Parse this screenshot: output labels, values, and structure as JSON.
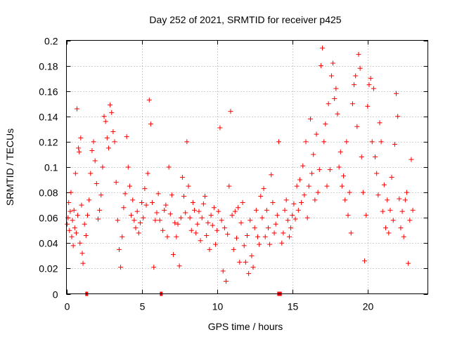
{
  "chart_data": {
    "type": "scatter",
    "title": "Day 252 of 2021, SRMTID for receiver p425",
    "xlabel": "GPS time / hours",
    "ylabel": "SRMTID / TECUs",
    "xlim": [
      0,
      24
    ],
    "ylim": [
      0,
      0.2
    ],
    "xticks": [
      0,
      5,
      10,
      15,
      20
    ],
    "yticks": [
      0,
      0.02,
      0.04,
      0.06,
      0.08,
      0.1,
      0.12,
      0.14,
      0.16,
      0.18,
      0.2
    ],
    "ytick_labels": [
      "0",
      "0.02",
      "0.04",
      "0.06",
      "0.08",
      "0.1",
      "0.12",
      "0.14",
      "0.16",
      "0.18",
      "0.2"
    ],
    "grid": true,
    "marker": "+",
    "color": "#ff0000",
    "data_gaps_at_zero": [
      {
        "x_start": 1.25,
        "x_end": 1.4
      },
      {
        "x_start": 6.2,
        "x_end": 6.35
      },
      {
        "x_start": 14.0,
        "x_end": 14.3
      }
    ],
    "series": [
      {
        "name": "SRMTID",
        "points": [
          [
            0.05,
            0.055
          ],
          [
            0.1,
            0.06
          ],
          [
            0.15,
            0.072
          ],
          [
            0.2,
            0.05
          ],
          [
            0.25,
            0.065
          ],
          [
            0.3,
            0.08
          ],
          [
            0.35,
            0.045
          ],
          [
            0.4,
            0.058
          ],
          [
            0.45,
            0.038
          ],
          [
            0.5,
            0.066
          ],
          [
            0.55,
            0.052
          ],
          [
            0.6,
            0.095
          ],
          [
            0.65,
            0.048
          ],
          [
            0.7,
            0.146
          ],
          [
            0.75,
            0.062
          ],
          [
            0.8,
            0.115
          ],
          [
            0.85,
            0.112
          ],
          [
            0.9,
            0.04
          ],
          [
            0.95,
            0.123
          ],
          [
            1.0,
            0.07
          ],
          [
            1.05,
            0.032
          ],
          [
            1.1,
            0.024
          ],
          [
            1.2,
            0.055
          ],
          [
            1.3,
            0.046
          ],
          [
            1.4,
            0.062
          ],
          [
            1.5,
            0.074
          ],
          [
            1.6,
            0.095
          ],
          [
            1.7,
            0.113
          ],
          [
            1.8,
            0.12
          ],
          [
            1.9,
            0.105
          ],
          [
            2.0,
            0.087
          ],
          [
            2.1,
            0.059
          ],
          [
            2.2,
            0.066
          ],
          [
            2.3,
            0.078
          ],
          [
            2.4,
            0.1
          ],
          [
            2.5,
            0.14
          ],
          [
            2.6,
            0.136
          ],
          [
            2.7,
            0.123
          ],
          [
            2.8,
            0.115
          ],
          [
            2.9,
            0.149
          ],
          [
            3.0,
            0.143
          ],
          [
            3.1,
            0.128
          ],
          [
            3.2,
            0.12
          ],
          [
            3.3,
            0.088
          ],
          [
            3.4,
            0.058
          ],
          [
            3.5,
            0.035
          ],
          [
            3.6,
            0.021
          ],
          [
            3.7,
            0.045
          ],
          [
            3.8,
            0.068
          ],
          [
            3.9,
            0.079
          ],
          [
            4.0,
            0.124
          ],
          [
            4.1,
            0.1
          ],
          [
            4.2,
            0.085
          ],
          [
            4.3,
            0.062
          ],
          [
            4.4,
            0.074
          ],
          [
            4.5,
            0.058
          ],
          [
            4.6,
            0.052
          ],
          [
            4.7,
            0.065
          ],
          [
            4.8,
            0.048
          ],
          [
            4.9,
            0.056
          ],
          [
            5.0,
            0.072
          ],
          [
            5.1,
            0.06
          ],
          [
            5.2,
            0.083
          ],
          [
            5.3,
            0.07
          ],
          [
            5.4,
            0.095
          ],
          [
            5.5,
            0.153
          ],
          [
            5.6,
            0.134
          ],
          [
            5.7,
            0.072
          ],
          [
            5.8,
            0.021
          ],
          [
            5.9,
            0.058
          ],
          [
            6.0,
            0.064
          ],
          [
            6.1,
            0.079
          ],
          [
            6.2,
            0.058
          ],
          [
            6.4,
            0.05
          ],
          [
            6.5,
            0.066
          ],
          [
            6.6,
            0.07
          ],
          [
            6.7,
            0.045
          ],
          [
            6.8,
            0.1
          ],
          [
            6.9,
            0.063
          ],
          [
            7.0,
            0.078
          ],
          [
            7.1,
            0.031
          ],
          [
            7.2,
            0.056
          ],
          [
            7.3,
            0.045
          ],
          [
            7.4,
            0.055
          ],
          [
            7.5,
            0.022
          ],
          [
            7.6,
            0.06
          ],
          [
            7.7,
            0.092
          ],
          [
            7.8,
            0.077
          ],
          [
            7.9,
            0.064
          ],
          [
            8.0,
            0.12
          ],
          [
            8.1,
            0.085
          ],
          [
            8.2,
            0.06
          ],
          [
            8.3,
            0.05
          ],
          [
            8.4,
            0.072
          ],
          [
            8.5,
            0.066
          ],
          [
            8.6,
            0.048
          ],
          [
            8.7,
            0.055
          ],
          [
            8.8,
            0.065
          ],
          [
            8.9,
            0.042
          ],
          [
            9.0,
            0.06
          ],
          [
            9.1,
            0.071
          ],
          [
            9.2,
            0.077
          ],
          [
            9.3,
            0.046
          ],
          [
            9.4,
            0.056
          ],
          [
            9.5,
            0.035
          ],
          [
            9.6,
            0.062
          ],
          [
            9.7,
            0.054
          ],
          [
            9.8,
            0.068
          ],
          [
            9.9,
            0.039
          ],
          [
            10.0,
            0.05
          ],
          [
            10.1,
            0.065
          ],
          [
            10.2,
            0.131
          ],
          [
            10.3,
            0.058
          ],
          [
            10.4,
            0.018
          ],
          [
            10.5,
            0.052
          ],
          [
            10.6,
            0.01
          ],
          [
            10.7,
            0.047
          ],
          [
            10.8,
            0.085
          ],
          [
            10.9,
            0.144
          ],
          [
            11.0,
            0.062
          ],
          [
            11.1,
            0.035
          ],
          [
            11.2,
            0.065
          ],
          [
            11.3,
            0.044
          ],
          [
            11.4,
            0.068
          ],
          [
            11.5,
            0.025
          ],
          [
            11.6,
            0.056
          ],
          [
            11.7,
            0.072
          ],
          [
            11.8,
            0.038
          ],
          [
            11.9,
            0.025
          ],
          [
            12.0,
            0.046
          ],
          [
            12.1,
            0.016
          ],
          [
            12.2,
            0.058
          ],
          [
            12.3,
            0.03
          ],
          [
            12.4,
            0.021
          ],
          [
            12.5,
            0.052
          ],
          [
            12.6,
            0.066
          ],
          [
            12.7,
            0.045
          ],
          [
            12.8,
            0.039
          ],
          [
            12.9,
            0.077
          ],
          [
            13.0,
            0.06
          ],
          [
            13.1,
            0.083
          ],
          [
            13.2,
            0.045
          ],
          [
            13.3,
            0.066
          ],
          [
            13.4,
            0.052
          ],
          [
            13.5,
            0.039
          ],
          [
            13.6,
            0.094
          ],
          [
            13.7,
            0.072
          ],
          [
            13.8,
            0.048
          ],
          [
            13.9,
            0.055
          ],
          [
            14.0,
            0.062
          ],
          [
            14.1,
            0.12
          ],
          [
            14.3,
            0.04
          ],
          [
            14.4,
            0.048
          ],
          [
            14.5,
            0.066
          ],
          [
            14.6,
            0.074
          ],
          [
            14.7,
            0.058
          ],
          [
            14.8,
            0.045
          ],
          [
            14.9,
            0.052
          ],
          [
            15.0,
            0.062
          ],
          [
            15.1,
            0.071
          ],
          [
            15.2,
            0.059
          ],
          [
            15.3,
            0.085
          ],
          [
            15.4,
            0.066
          ],
          [
            15.5,
            0.09
          ],
          [
            15.6,
            0.072
          ],
          [
            15.7,
            0.101
          ],
          [
            15.8,
            0.078
          ],
          [
            15.9,
            0.12
          ],
          [
            16.0,
            0.06
          ],
          [
            16.1,
            0.085
          ],
          [
            16.2,
            0.138
          ],
          [
            16.3,
            0.095
          ],
          [
            16.4,
            0.11
          ],
          [
            16.5,
            0.074
          ],
          [
            16.6,
            0.126
          ],
          [
            16.7,
            0.08
          ],
          [
            16.8,
            0.098
          ],
          [
            16.9,
            0.18
          ],
          [
            17.0,
            0.194
          ],
          [
            17.1,
            0.12
          ],
          [
            17.2,
            0.134
          ],
          [
            17.3,
            0.085
          ],
          [
            17.4,
            0.15
          ],
          [
            17.5,
            0.098
          ],
          [
            17.6,
            0.172
          ],
          [
            17.7,
            0.182
          ],
          [
            17.8,
            0.154
          ],
          [
            17.9,
            0.162
          ],
          [
            18.0,
            0.142
          ],
          [
            18.1,
            0.1
          ],
          [
            18.2,
            0.112
          ],
          [
            18.3,
            0.085
          ],
          [
            18.4,
            0.093
          ],
          [
            18.5,
            0.074
          ],
          [
            18.6,
            0.12
          ],
          [
            18.7,
            0.062
          ],
          [
            18.8,
            0.08
          ],
          [
            18.9,
            0.048
          ],
          [
            19.0,
            0.15
          ],
          [
            19.1,
            0.165
          ],
          [
            19.2,
            0.172
          ],
          [
            19.3,
            0.132
          ],
          [
            19.4,
            0.189
          ],
          [
            19.5,
            0.178
          ],
          [
            19.6,
            0.108
          ],
          [
            19.7,
            0.08
          ],
          [
            19.8,
            0.026
          ],
          [
            19.9,
            0.062
          ],
          [
            20.0,
            0.148
          ],
          [
            20.1,
            0.165
          ],
          [
            20.2,
            0.17
          ],
          [
            20.3,
            0.12
          ],
          [
            20.4,
            0.162
          ],
          [
            20.5,
            0.108
          ],
          [
            20.6,
            0.095
          ],
          [
            20.7,
            0.078
          ],
          [
            20.8,
            0.135
          ],
          [
            20.9,
            0.12
          ],
          [
            21.0,
            0.065
          ],
          [
            21.1,
            0.086
          ],
          [
            21.2,
            0.052
          ],
          [
            21.3,
            0.074
          ],
          [
            21.4,
            0.048
          ],
          [
            21.5,
            0.066
          ],
          [
            21.6,
            0.092
          ],
          [
            21.7,
            0.058
          ],
          [
            21.8,
            0.118
          ],
          [
            21.9,
            0.158
          ],
          [
            22.0,
            0.14
          ],
          [
            22.1,
            0.075
          ],
          [
            22.2,
            0.052
          ],
          [
            22.3,
            0.065
          ],
          [
            22.4,
            0.045
          ],
          [
            22.5,
            0.074
          ],
          [
            22.6,
            0.08
          ],
          [
            22.7,
            0.024
          ],
          [
            22.8,
            0.058
          ],
          [
            22.9,
            0.106
          ],
          [
            23.0,
            0.066
          ]
        ]
      }
    ]
  }
}
